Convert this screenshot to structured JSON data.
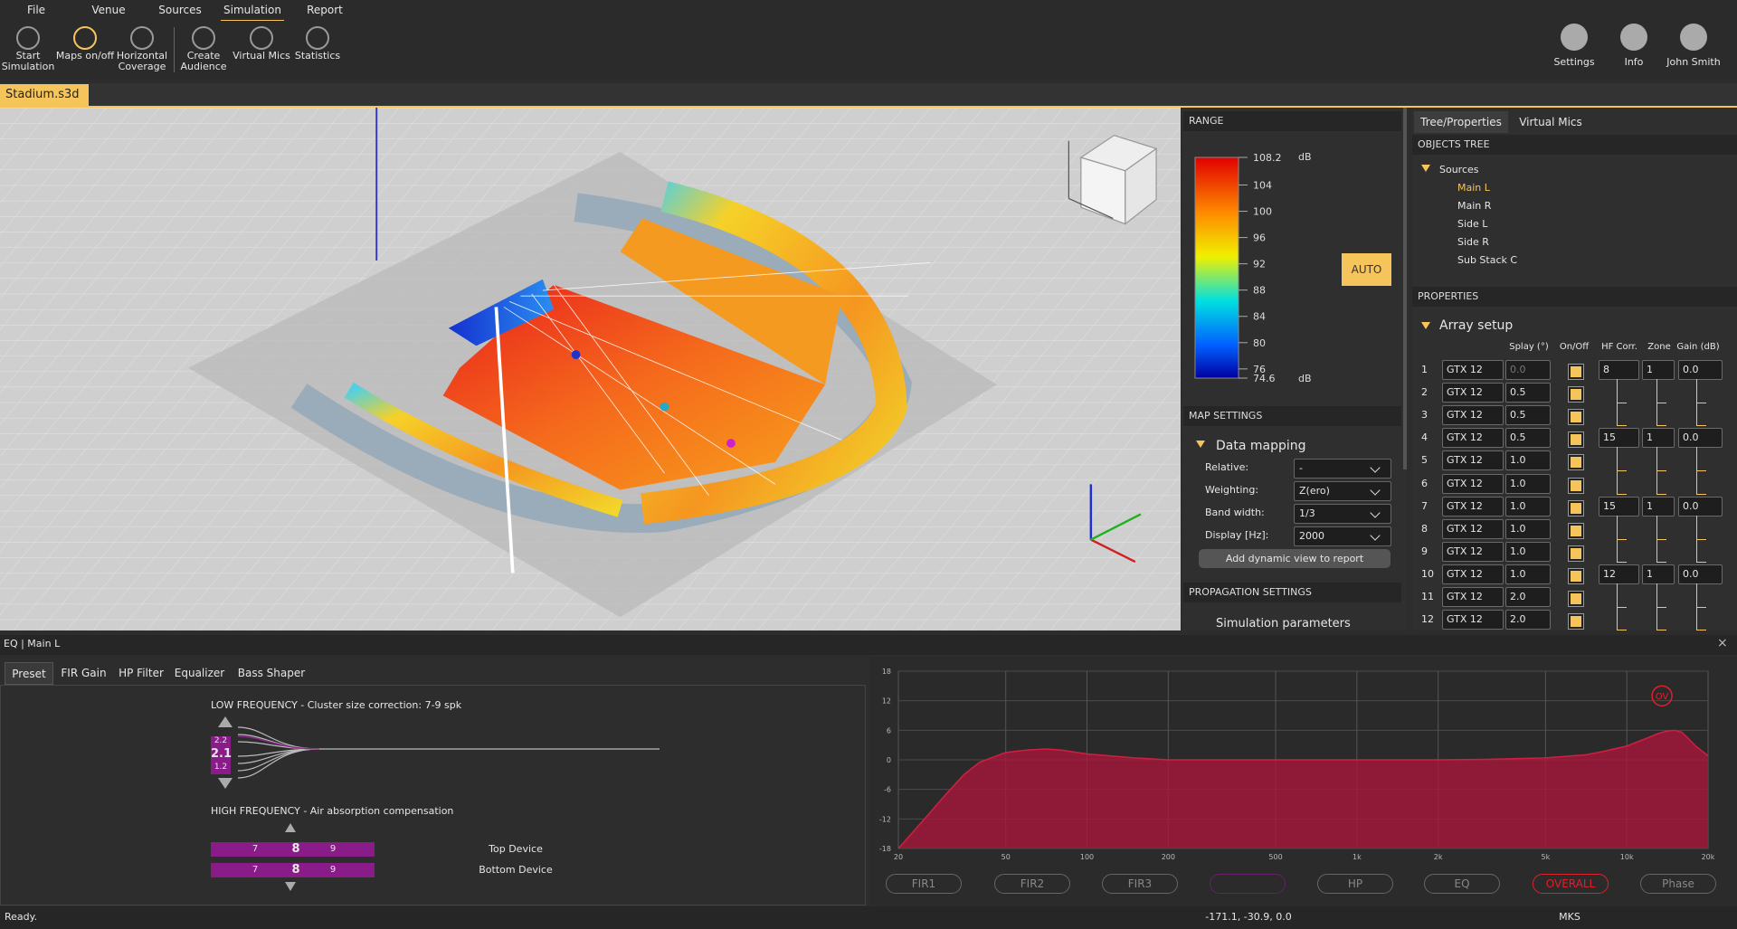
{
  "menu": [
    "File",
    "Venue",
    "Sources",
    "Simulation",
    "Report"
  ],
  "toolbar": [
    "Start Simulation",
    "Maps on/off",
    "Horizontal Coverage",
    "Create Audience",
    "Virtual Mics",
    "Statistics"
  ],
  "toolbar_right": [
    "Settings",
    "Info",
    "John Smith"
  ],
  "document_tab": "Stadium.s3d",
  "range": {
    "title": "RANGE",
    "unit": "dB",
    "max": 108.2,
    "min": 74.6,
    "ticks": [
      104,
      100,
      96,
      92,
      88,
      84,
      80,
      76
    ],
    "button": "AUTO"
  },
  "map_settings": {
    "title": "MAP SETTINGS",
    "section": "Data mapping",
    "fields": [
      {
        "label": "Relative:",
        "value": "-"
      },
      {
        "label": "Weighting:",
        "value": "Z(ero)"
      },
      {
        "label": "Band width:",
        "value": "1/3"
      },
      {
        "label": "Display [Hz]:",
        "value": "2000"
      }
    ],
    "button": "Add dynamic view to report"
  },
  "propagation": {
    "title": "PROPAGATION SETTINGS",
    "section": "Simulation parameters"
  },
  "side_tabs": [
    "Tree/Properties",
    "Virtual Mics"
  ],
  "objects_tree": {
    "title": "OBJECTS TREE",
    "root": "Sources",
    "items": [
      "Main L",
      "Main R",
      "Side L",
      "Side R",
      "Sub Stack C"
    ]
  },
  "properties": {
    "title": "PROPERTIES",
    "section": "Array setup",
    "columns": [
      "Splay (°)",
      "On/Off",
      "HF Corr.",
      "Zone",
      "Gain (dB)"
    ],
    "rows": [
      [
        "1",
        "GTX 12",
        "0.0",
        "8",
        "1",
        "0.0"
      ],
      [
        "2",
        "GTX 12",
        "0.5"
      ],
      [
        "3",
        "GTX 12",
        "0.5"
      ],
      [
        "4",
        "GTX 12",
        "0.5",
        "15",
        "1",
        "0.0"
      ],
      [
        "5",
        "GTX 12",
        "1.0"
      ],
      [
        "6",
        "GTX 12",
        "1.0"
      ],
      [
        "7",
        "GTX 12",
        "1.0",
        "15",
        "1",
        "0.0"
      ],
      [
        "8",
        "GTX 12",
        "1.0"
      ],
      [
        "9",
        "GTX 12",
        "1.0"
      ],
      [
        "10",
        "GTX 12",
        "1.0",
        "12",
        "1",
        "0.0"
      ],
      [
        "11",
        "GTX 12",
        "2.0"
      ],
      [
        "12",
        "GTX 12",
        "2.0"
      ]
    ]
  },
  "eq_panel": {
    "title": "EQ | Main L",
    "tabs": [
      "Preset",
      "FIR Gain",
      "HP Filter",
      "Equalizer",
      "Bass Shaper"
    ],
    "low_frequency": {
      "title": "LOW FREQUENCY - Cluster size correction: 7-9 spk",
      "values": [
        "2.2",
        "2.1",
        "1.2"
      ]
    },
    "high_frequency": {
      "title": "HIGH FREQUENCY - Air absorption compensation",
      "devices": [
        {
          "name": "Top Device",
          "values": [
            "7",
            "8",
            "9"
          ]
        },
        {
          "name": "Bottom Device",
          "values": [
            "7",
            "8",
            "9"
          ]
        }
      ]
    }
  },
  "eq_buttons": [
    "FIR1",
    "FIR2",
    "FIR3",
    "HP",
    "EQ",
    "OVERALL",
    "Phase"
  ],
  "chart_data": {
    "type": "area",
    "xscale": "log",
    "grid": true,
    "x": [
      20,
      25,
      30,
      35,
      40,
      50,
      60,
      70,
      80,
      100,
      150,
      200,
      300,
      500,
      1000,
      2000,
      3000,
      5000,
      7000,
      8000,
      10000,
      12000,
      13000,
      14000,
      15000,
      16000,
      17000,
      18000,
      20000
    ],
    "series": [
      {
        "color": "#a8173c",
        "values": [
          -18,
          -12,
          -7,
          -3,
          -0.5,
          1.5,
          2,
          2.2,
          2,
          1.2,
          0.4,
          0,
          0,
          0,
          0,
          0,
          0.1,
          0.4,
          1,
          1.6,
          2.8,
          4.5,
          5.3,
          5.8,
          6,
          5.6,
          4.2,
          2.8,
          0.8
        ]
      }
    ],
    "xlim": [
      20,
      20000
    ],
    "ylim": [
      -18,
      18
    ],
    "xticks": [
      20,
      50,
      100,
      200,
      500,
      {
        "value": 1000,
        "label": "1k"
      },
      {
        "value": 2000,
        "label": "2k"
      },
      {
        "value": 5000,
        "label": "5k"
      },
      {
        "value": 10000,
        "label": "10k"
      },
      {
        "value": 20000,
        "label": "20k"
      }
    ],
    "yticks": [
      18,
      12,
      6,
      0,
      -6,
      -12,
      -18
    ],
    "annotations": [
      "OV"
    ]
  },
  "status": {
    "text": "Ready.",
    "coordinates": "-171.1, -30.9, 0.0",
    "units": "MKS"
  }
}
